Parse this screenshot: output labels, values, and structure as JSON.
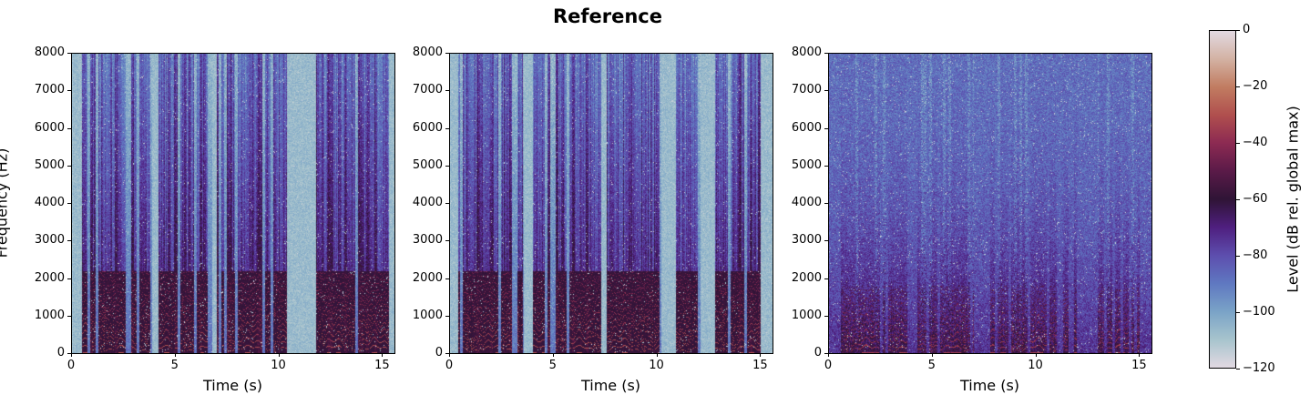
{
  "chart_data": {
    "type": "heatmap",
    "title": "Reference",
    "panels": [
      {
        "id": "panel-1",
        "xlabel": "Time (s)",
        "ylabel": "Frequency (Hz)",
        "xlim": [
          0,
          15.6
        ],
        "ylim": [
          0,
          8000
        ],
        "xticks": [
          0,
          5,
          10,
          15
        ],
        "yticks": [
          0,
          1000,
          2000,
          3000,
          4000,
          5000,
          6000,
          7000,
          8000
        ],
        "noise_floor_db": -100,
        "speech_segments": [
          [
            0.5,
            3.9
          ],
          [
            4.2,
            6.8
          ],
          [
            7.0,
            10.4
          ],
          [
            11.8,
            15.3
          ]
        ],
        "description": "Clean speech; strong harmonics (-20 to -40 dB) below ~2 kHz, bright gaps (~-115 dB) between words"
      },
      {
        "id": "panel-2",
        "xlabel": "Time (s)",
        "ylabel": "",
        "xlim": [
          0,
          15.6
        ],
        "ylim": [
          0,
          8000
        ],
        "xticks": [
          0,
          5,
          10,
          15
        ],
        "yticks": [
          0,
          1000,
          2000,
          3000,
          4000,
          5000,
          6000,
          7000,
          8000
        ],
        "noise_floor_db": -102,
        "speech_segments": [
          [
            0.4,
            3.6
          ],
          [
            4.0,
            7.3
          ],
          [
            7.6,
            10.2
          ],
          [
            10.9,
            12.1
          ],
          [
            12.8,
            15.0
          ]
        ],
        "description": "Clean speech; similar structure with silent gap near 10.3-10.8 s"
      },
      {
        "id": "panel-3",
        "xlabel": "Time (s)",
        "ylabel": "",
        "xlim": [
          0,
          15.6
        ],
        "ylim": [
          0,
          8000
        ],
        "xticks": [
          0,
          5,
          10,
          15
        ],
        "yticks": [
          0,
          1000,
          2000,
          3000,
          4000,
          5000,
          6000,
          7000,
          8000
        ],
        "noise_floor_db": -85,
        "speech_segments": [
          [
            0.6,
            3.8
          ],
          [
            4.3,
            7.0
          ],
          [
            7.8,
            11.0
          ],
          [
            11.3,
            12.0
          ],
          [
            13.0,
            15.0
          ]
        ],
        "description": "Noisy speech; elevated broadband floor (~-80 dB), low-frequency harmonics under 1 kHz"
      }
    ],
    "colorbar": {
      "label": "Level (dB rel. global max)",
      "range": [
        -120,
        0
      ],
      "ticks": [
        0,
        -20,
        -40,
        -60,
        -80,
        -100,
        -120
      ],
      "colormap": "twilight_shifted",
      "stops": [
        {
          "db": -120,
          "color": "#e2d9e2"
        },
        {
          "db": -110,
          "color": "#a7c4cd"
        },
        {
          "db": -100,
          "color": "#7aa3c7"
        },
        {
          "db": -90,
          "color": "#5f78c1"
        },
        {
          "db": -80,
          "color": "#5d4eae"
        },
        {
          "db": -70,
          "color": "#4f1f7f"
        },
        {
          "db": -60,
          "color": "#2f1436"
        },
        {
          "db": -50,
          "color": "#5a1a48"
        },
        {
          "db": -40,
          "color": "#8c2a52"
        },
        {
          "db": -30,
          "color": "#b04f4e"
        },
        {
          "db": -20,
          "color": "#c17c61"
        },
        {
          "db": -10,
          "color": "#d3b2a3"
        },
        {
          "db": 0,
          "color": "#e2d9e2"
        }
      ]
    }
  },
  "labels": {
    "title": "Reference",
    "xlabel": "Time (s)",
    "ylabel": "Frequency (Hz)",
    "colorbar_label": "Level (dB rel. global max)",
    "xtick_labels": [
      "0",
      "5",
      "10",
      "15"
    ],
    "ytick_labels": [
      "0",
      "1000",
      "2000",
      "3000",
      "4000",
      "5000",
      "6000",
      "7000",
      "8000"
    ],
    "ctick_labels": [
      "0",
      "−20",
      "−40",
      "−60",
      "−80",
      "−100",
      "−120"
    ]
  }
}
